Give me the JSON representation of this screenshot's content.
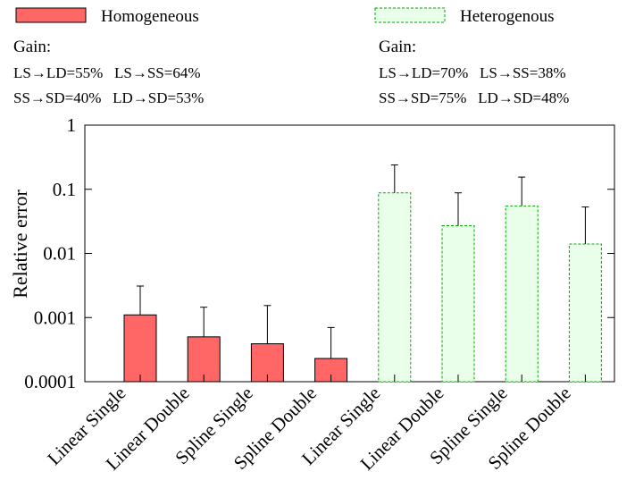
{
  "chart_data": {
    "type": "bar",
    "ylabel": "Relative error",
    "log_y": true,
    "categories": [
      "Linear Single",
      "Linear Double",
      "Spline Single",
      "Spline Double",
      "Linear Single",
      "Linear Double",
      "Spline Single",
      "Spline Double"
    ],
    "series": [
      {
        "name": "Homogeneous",
        "color": "#ff6666",
        "border": "#000000",
        "dashed": false,
        "values": [
          0.0011,
          0.0005,
          0.00039,
          0.00023,
          null,
          null,
          null,
          null
        ],
        "errors": [
          0.002,
          0.00095,
          0.00115,
          0.00047,
          null,
          null,
          null,
          null
        ]
      },
      {
        "name": "Heterogenous",
        "color": "#eaffea",
        "border": "#00aa00",
        "dashed": true,
        "values": [
          null,
          null,
          null,
          null,
          0.088,
          0.027,
          0.055,
          0.014
        ],
        "errors": [
          null,
          null,
          null,
          null,
          0.152,
          0.061,
          0.1,
          0.039
        ]
      }
    ],
    "annotations": [
      {
        "title": "Gain:",
        "lines": [
          "LS→LD=55%   LS→SS=64%",
          "SS→SD=40%   LD→SD=53%"
        ]
      },
      {
        "title": "Gain:",
        "lines": [
          "LS→LD=70%   LS→SS=38%",
          "SS→SD=75%   LD→SD=48%"
        ]
      }
    ],
    "ylim": [
      0.0001,
      1
    ],
    "yticks": [
      0.0001,
      0.001,
      0.01,
      0.1,
      1
    ]
  }
}
